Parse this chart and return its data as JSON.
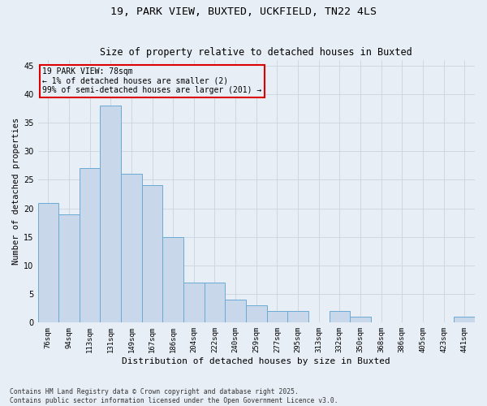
{
  "title1": "19, PARK VIEW, BUXTED, UCKFIELD, TN22 4LS",
  "title2": "Size of property relative to detached houses in Buxted",
  "xlabel": "Distribution of detached houses by size in Buxted",
  "ylabel": "Number of detached properties",
  "categories": [
    "76sqm",
    "94sqm",
    "113sqm",
    "131sqm",
    "149sqm",
    "167sqm",
    "186sqm",
    "204sqm",
    "222sqm",
    "240sqm",
    "259sqm",
    "277sqm",
    "295sqm",
    "313sqm",
    "332sqm",
    "350sqm",
    "368sqm",
    "386sqm",
    "405sqm",
    "423sqm",
    "441sqm"
  ],
  "values": [
    21,
    19,
    27,
    38,
    26,
    24,
    15,
    7,
    7,
    4,
    3,
    2,
    2,
    0,
    2,
    1,
    0,
    0,
    0,
    0,
    1
  ],
  "bar_color": "#C8D8EA",
  "bar_edge_color": "#6aaad4",
  "annotation_text": "19 PARK VIEW: 78sqm\n← 1% of detached houses are smaller (2)\n99% of semi-detached houses are larger (201) →",
  "annotation_box_color": "#DD0000",
  "ylim": [
    0,
    46
  ],
  "yticks": [
    0,
    5,
    10,
    15,
    20,
    25,
    30,
    35,
    40,
    45
  ],
  "grid_color": "#C8D4E0",
  "background_color": "#E8EEF5",
  "footnote": "Contains HM Land Registry data © Crown copyright and database right 2025.\nContains public sector information licensed under the Open Government Licence v3.0."
}
